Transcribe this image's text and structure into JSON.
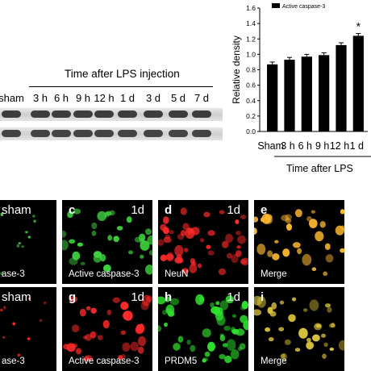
{
  "blot": {
    "title": "Time after LPS injection",
    "lanes": [
      "sham",
      "3 h",
      "6 h",
      "9 h",
      "12 h",
      "1 d",
      "3 d",
      "5 d",
      "7 d"
    ]
  },
  "chart_data": {
    "type": "bar",
    "categories": [
      "Sham",
      "3 h",
      "6 h",
      "9 h",
      "12 h",
      "1 d"
    ],
    "tick_label_text": [
      "Sham",
      "3 h",
      "6 h",
      "9 h",
      "12 h",
      "1 d"
    ],
    "values": [
      0.87,
      0.93,
      0.97,
      0.99,
      1.12,
      1.24
    ],
    "errors": [
      0.03,
      0.03,
      0.03,
      0.03,
      0.03,
      0.03
    ],
    "series": [
      {
        "name": "Active caspase-3",
        "values": [
          0.87,
          0.93,
          0.97,
          0.99,
          1.12,
          1.24
        ]
      }
    ],
    "ylabel": "Relative density",
    "xlabel": "Time after LPS",
    "ylim": [
      0,
      1.6
    ],
    "yticks": [
      "0.0",
      "0.2",
      "0.4",
      "0.6",
      "0.8",
      "1.0",
      "1.2",
      "1.4",
      "1.6"
    ],
    "annotation": "*",
    "legend_position": "top",
    "bar_color": "#000000"
  },
  "panels": {
    "row1": [
      {
        "id": "b",
        "letter": "",
        "time": "sham",
        "caption": "ase-3",
        "color": "#3fd33f"
      },
      {
        "id": "c",
        "letter": "c",
        "time": "1d",
        "caption": "Active caspase-3",
        "color": "#3fd33f"
      },
      {
        "id": "d",
        "letter": "d",
        "time": "1d",
        "caption": "NeuN",
        "color": "#ff2a2a"
      },
      {
        "id": "e",
        "letter": "e",
        "time": "",
        "caption": "Merge",
        "color": "#ffb830"
      }
    ],
    "row2": [
      {
        "id": "f",
        "letter": "",
        "time": "sham",
        "caption": "ase-3",
        "color": "#ff2a2a"
      },
      {
        "id": "g",
        "letter": "g",
        "time": "1d",
        "caption": "Active caspase-3",
        "color": "#ff2a2a"
      },
      {
        "id": "h",
        "letter": "h",
        "time": "1d",
        "caption": "PRDM5",
        "color": "#2fe02f"
      },
      {
        "id": "i",
        "letter": "i",
        "time": "",
        "caption": "Merge",
        "color": "#d9c23a"
      }
    ]
  }
}
